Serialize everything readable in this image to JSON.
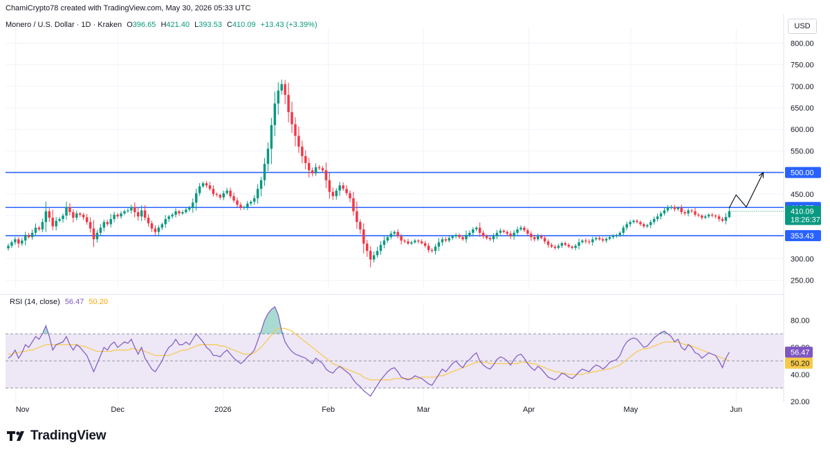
{
  "header": {
    "credit": "ChamiCrypto78 created with TradingView.com, May 30, 2026 05:33 UTC",
    "symbol": "Monero / U.S. Dollar · 1D · Kraken",
    "ohlc": {
      "o_label": "O",
      "o_value": "396.65",
      "h_label": "H",
      "h_value": "421.40",
      "l_label": "L",
      "l_value": "393.53",
      "c_label": "C",
      "c_value": "410.09",
      "change": "+13.43 (+3.39%)"
    },
    "currency": "USD"
  },
  "brand": {
    "name": "TradingView"
  },
  "colors": {
    "up": "#089981",
    "down": "#f23645",
    "level": "#2962ff",
    "rsi": "#7e57c2",
    "rsi_ma": "#f7c948",
    "rsi_band": "#ede7f6",
    "grid": "#f0f3fa"
  },
  "chart_data": [
    {
      "type": "candlestick",
      "title": "Monero / U.S. Dollar · 1D · Kraken",
      "ylim": [
        230,
        820
      ],
      "y_ticks": [
        "800.00",
        "750.00",
        "700.00",
        "650.00",
        "600.00",
        "550.00",
        "500.00",
        "450.00",
        "400.00",
        "350.00",
        "300.00",
        "250.00"
      ],
      "x_ticks": [
        {
          "label": "Nov",
          "date": "2025-11-01"
        },
        {
          "label": "Dec",
          "date": "2025-12-01"
        },
        {
          "label": "2026",
          "date": "2026-01-01"
        },
        {
          "label": "Feb",
          "date": "2026-02-01"
        },
        {
          "label": "Mar",
          "date": "2026-03-01"
        },
        {
          "label": "Apr",
          "date": "2026-04-01"
        },
        {
          "label": "May",
          "date": "2026-05-01"
        },
        {
          "label": "Jun",
          "date": "2026-06-01"
        }
      ],
      "xlim": [
        "2025-10-29",
        "2026-06-15"
      ],
      "last_date": "2026-05-30",
      "levels": [
        {
          "value": 500.0,
          "label": "500.00"
        },
        {
          "value": 418.77,
          "label": "418.77"
        },
        {
          "value": 353.43,
          "label": "353.43"
        }
      ],
      "current_price": {
        "value": 410.09,
        "label": "410.09",
        "countdown": "18:26:37"
      },
      "projection": [
        {
          "date": "2026-05-30",
          "value": 418
        },
        {
          "date": "2026-06-01",
          "value": 448
        },
        {
          "date": "2026-06-04",
          "value": 420
        },
        {
          "date": "2026-06-09",
          "value": 500
        }
      ],
      "closes": [
        330,
        338,
        345,
        335,
        342,
        355,
        350,
        360,
        372,
        368,
        385,
        410,
        395,
        375,
        388,
        392,
        400,
        420,
        408,
        395,
        405,
        402,
        396,
        385,
        370,
        345,
        360,
        372,
        385,
        380,
        392,
        402,
        398,
        405,
        410,
        412,
        420,
        408,
        398,
        412,
        395,
        382,
        370,
        362,
        372,
        380,
        392,
        398,
        402,
        410,
        405,
        408,
        414,
        418,
        430,
        452,
        468,
        475,
        470,
        462,
        450,
        448,
        442,
        452,
        458,
        445,
        435,
        425,
        418,
        420,
        428,
        432,
        440,
        462,
        482,
        520,
        555,
        610,
        660,
        690,
        705,
        680,
        640,
        612,
        585,
        560,
        538,
        522,
        505,
        498,
        512,
        510,
        505,
        482,
        455,
        445,
        458,
        470,
        462,
        452,
        440,
        410,
        385,
        368,
        335,
        318,
        298,
        308,
        318,
        332,
        342,
        350,
        358,
        362,
        352,
        342,
        340,
        335,
        338,
        342,
        340,
        336,
        330,
        320,
        318,
        328,
        338,
        345,
        342,
        348,
        352,
        355,
        350,
        345,
        355,
        360,
        368,
        372,
        360,
        352,
        348,
        345,
        352,
        360,
        365,
        362,
        358,
        352,
        360,
        368,
        372,
        366,
        358,
        350,
        345,
        352,
        348,
        340,
        332,
        328,
        325,
        330,
        336,
        332,
        328,
        325,
        330,
        338,
        342,
        340,
        338,
        345,
        348,
        345,
        342,
        346,
        350,
        352,
        355,
        360,
        372,
        380,
        385,
        388,
        385,
        380,
        375,
        378,
        385,
        392,
        398,
        405,
        412,
        418,
        420,
        415,
        418,
        408,
        405,
        412,
        410,
        402,
        400,
        395,
        398,
        402,
        400,
        398,
        392,
        388,
        396.65,
        410.09
      ]
    },
    {
      "type": "line",
      "title": "RSI (14, close)",
      "ylim": [
        18,
        92
      ],
      "y_ticks": [
        "80.00",
        "60.00",
        "40.00",
        "20.00"
      ],
      "band": [
        30,
        70
      ],
      "midline": 50,
      "series": [
        {
          "name": "RSI",
          "last_label": "56.47",
          "values": [
            52,
            54,
            58,
            52,
            56,
            62,
            60,
            64,
            68,
            66,
            70,
            76,
            68,
            58,
            62,
            63,
            64,
            68,
            62,
            58,
            62,
            60,
            57,
            54,
            48,
            42,
            48,
            54,
            60,
            58,
            62,
            64,
            60,
            62,
            64,
            63,
            66,
            60,
            55,
            60,
            52,
            48,
            44,
            42,
            46,
            50,
            56,
            60,
            62,
            66,
            62,
            62,
            64,
            62,
            66,
            70,
            67,
            64,
            60,
            58,
            54,
            54,
            53,
            56,
            58,
            55,
            52,
            50,
            48,
            50,
            53,
            55,
            58,
            65,
            72,
            80,
            85,
            88,
            90,
            84,
            72,
            64,
            60,
            57,
            55,
            54,
            53,
            52,
            50,
            48,
            52,
            50,
            48,
            44,
            42,
            41,
            44,
            46,
            44,
            42,
            40,
            36,
            33,
            31,
            28,
            26,
            24,
            28,
            32,
            36,
            39,
            42,
            44,
            45,
            42,
            38,
            37,
            36,
            37,
            39,
            38,
            37,
            35,
            33,
            32,
            36,
            40,
            44,
            42,
            45,
            48,
            50,
            47,
            45,
            49,
            51,
            54,
            56,
            50,
            47,
            45,
            44,
            47,
            51,
            53,
            52,
            50,
            47,
            51,
            54,
            55,
            52,
            48,
            45,
            43,
            46,
            44,
            41,
            38,
            37,
            36,
            38,
            41,
            40,
            38,
            37,
            39,
            42,
            44,
            43,
            42,
            45,
            47,
            46,
            44,
            46,
            49,
            50,
            51,
            54,
            60,
            64,
            66,
            67,
            66,
            63,
            60,
            61,
            64,
            67,
            69,
            71,
            72,
            70,
            68,
            64,
            66,
            60,
            58,
            62,
            60,
            56,
            55,
            52,
            54,
            56,
            55,
            54,
            50,
            45,
            52,
            56.47
          ]
        },
        {
          "name": "RSI-based MA",
          "last_label": "50.20",
          "values": [
            55,
            55,
            56,
            56,
            57,
            57,
            58,
            58,
            59,
            60,
            61,
            62,
            62,
            62,
            62,
            62,
            62,
            62,
            62,
            62,
            62,
            61,
            61,
            60,
            59,
            58,
            57,
            57,
            57,
            57,
            57,
            58,
            58,
            58,
            58,
            58,
            59,
            59,
            58,
            58,
            57,
            56,
            55,
            54,
            54,
            54,
            54,
            54,
            55,
            56,
            57,
            58,
            58,
            59,
            60,
            61,
            62,
            62,
            62,
            62,
            62,
            62,
            61,
            61,
            60,
            59,
            58,
            57,
            56,
            55,
            55,
            55,
            56,
            58,
            60,
            63,
            66,
            69,
            72,
            74,
            74,
            74,
            73,
            72,
            70,
            68,
            66,
            64,
            62,
            60,
            58,
            56,
            54,
            52,
            50,
            48,
            47,
            46,
            45,
            44,
            43,
            42,
            41,
            40,
            38,
            37,
            36,
            36,
            36,
            36,
            36,
            36,
            36,
            37,
            37,
            37,
            37,
            37,
            37,
            37,
            37,
            38,
            38,
            38,
            38,
            38,
            39,
            39,
            40,
            41,
            42,
            43,
            44,
            45,
            46,
            47,
            48,
            49,
            49,
            49,
            49,
            48,
            48,
            48,
            48,
            48,
            48,
            48,
            48,
            48,
            49,
            49,
            49,
            48,
            48,
            47,
            46,
            45,
            44,
            43,
            42,
            42,
            41,
            41,
            40,
            40,
            40,
            40,
            40,
            41,
            41,
            42,
            42,
            43,
            43,
            44,
            44,
            45,
            46,
            47,
            49,
            51,
            53,
            55,
            57,
            58,
            59,
            59,
            60,
            61,
            62,
            63,
            64,
            64,
            64,
            64,
            64,
            63,
            62,
            62,
            61,
            60,
            59,
            58,
            57,
            56,
            55,
            54,
            53,
            52,
            51,
            50.2
          ]
        }
      ]
    }
  ]
}
